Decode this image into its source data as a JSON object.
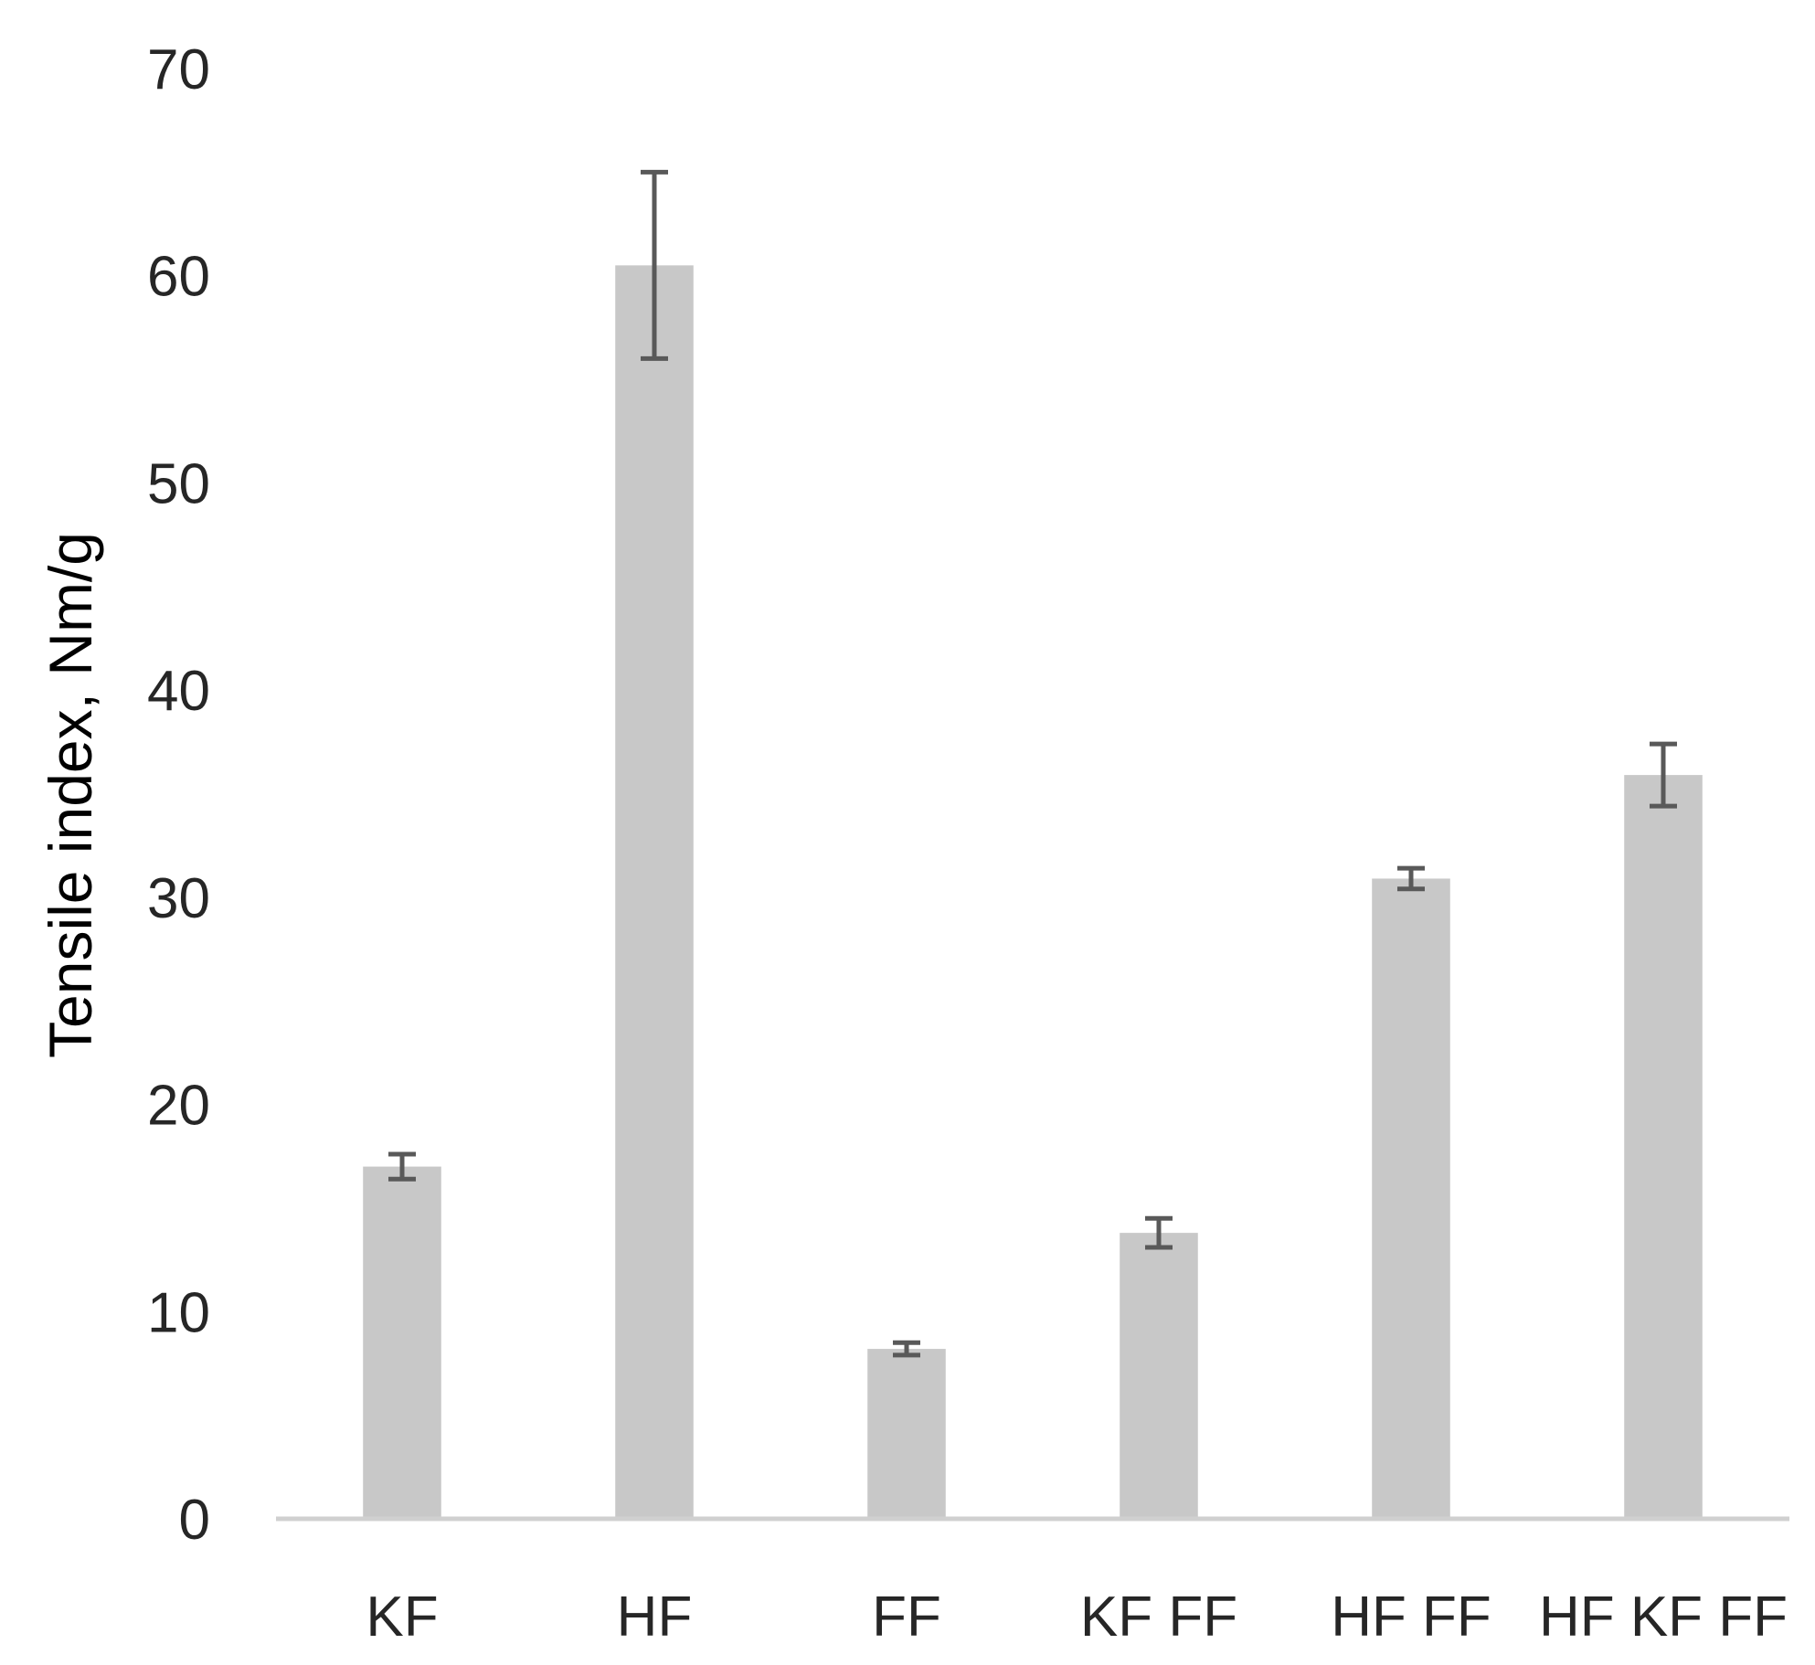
{
  "chart_data": {
    "type": "bar",
    "title": "",
    "xlabel": "",
    "ylabel": "Tensile index, Nm/g",
    "categories": [
      "KF",
      "HF",
      "FF",
      "KF FF",
      "HF FF",
      "HF KF FF"
    ],
    "values": [
      17.0,
      60.5,
      8.2,
      13.8,
      30.9,
      35.9
    ],
    "error": [
      0.6,
      4.5,
      0.3,
      0.7,
      0.5,
      1.5
    ],
    "ylim": [
      0,
      70
    ],
    "yticks": [
      "0",
      "10",
      "20",
      "30",
      "40",
      "50",
      "60",
      "70"
    ],
    "grid": false,
    "legend": "none",
    "colors": {
      "bar": "#c8c8c8",
      "error_bar": "#595959",
      "baseline": "#d0d0d0",
      "text": "#262626"
    }
  }
}
